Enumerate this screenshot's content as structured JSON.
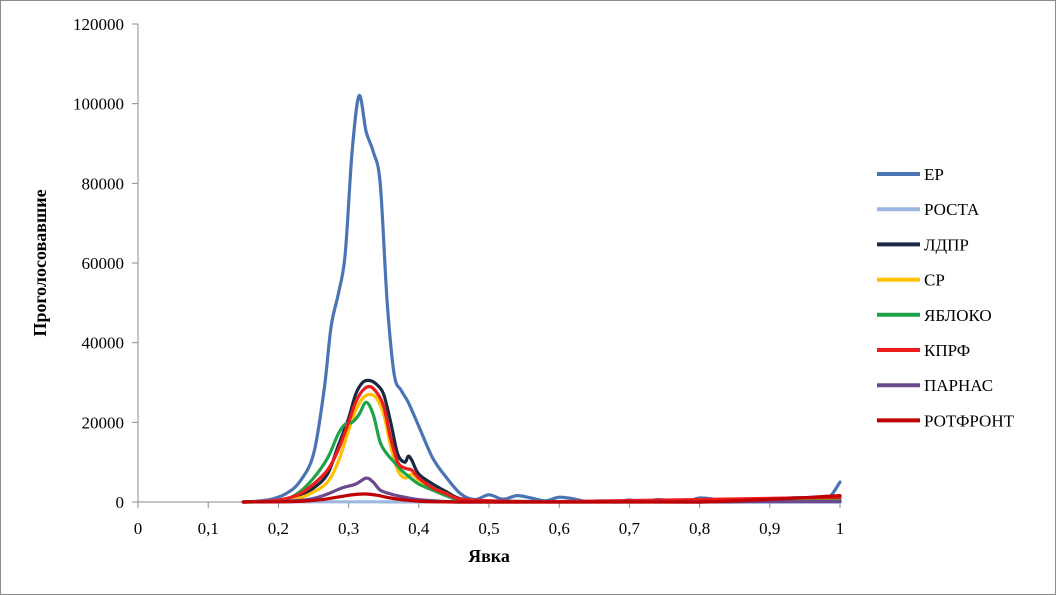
{
  "chart_data": {
    "type": "line",
    "title": "",
    "xlabel": "Явка",
    "ylabel": "Проголосовавшие",
    "xlim": [
      0,
      1
    ],
    "ylim": [
      0,
      120000
    ],
    "x_ticks": [
      "0",
      "0,1",
      "0,2",
      "0,3",
      "0,4",
      "0,5",
      "0,6",
      "0,7",
      "0,8",
      "0,9",
      "1"
    ],
    "y_ticks": [
      "0",
      "20000",
      "40000",
      "60000",
      "80000",
      "100000",
      "120000"
    ],
    "grid": false,
    "legend_position": "right",
    "series": [
      {
        "name": "ЕР",
        "color": "#4a74b4",
        "points": [
          [
            0.15,
            0
          ],
          [
            0.17,
            200
          ],
          [
            0.19,
            700
          ],
          [
            0.21,
            2000
          ],
          [
            0.23,
            5000
          ],
          [
            0.25,
            12000
          ],
          [
            0.265,
            28000
          ],
          [
            0.275,
            44000
          ],
          [
            0.285,
            52000
          ],
          [
            0.295,
            62000
          ],
          [
            0.305,
            88000
          ],
          [
            0.315,
            102000
          ],
          [
            0.325,
            93000
          ],
          [
            0.335,
            88000
          ],
          [
            0.345,
            80000
          ],
          [
            0.355,
            50000
          ],
          [
            0.365,
            32000
          ],
          [
            0.375,
            28000
          ],
          [
            0.385,
            25000
          ],
          [
            0.4,
            19000
          ],
          [
            0.42,
            11000
          ],
          [
            0.44,
            6000
          ],
          [
            0.46,
            2000
          ],
          [
            0.48,
            600
          ],
          [
            0.5,
            1800
          ],
          [
            0.52,
            700
          ],
          [
            0.54,
            1600
          ],
          [
            0.56,
            1000
          ],
          [
            0.58,
            300
          ],
          [
            0.6,
            1200
          ],
          [
            0.62,
            800
          ],
          [
            0.64,
            100
          ],
          [
            0.66,
            300
          ],
          [
            0.68,
            0
          ],
          [
            0.7,
            500
          ],
          [
            0.72,
            0
          ],
          [
            0.74,
            600
          ],
          [
            0.76,
            300
          ],
          [
            0.78,
            0
          ],
          [
            0.8,
            1000
          ],
          [
            0.82,
            700
          ],
          [
            0.84,
            0
          ],
          [
            0.86,
            200
          ],
          [
            0.88,
            0
          ],
          [
            0.9,
            700
          ],
          [
            0.92,
            900
          ],
          [
            0.94,
            1100
          ],
          [
            0.96,
            800
          ],
          [
            0.98,
            200
          ],
          [
            1.0,
            5000
          ]
        ]
      },
      {
        "name": "РОСТА",
        "color": "#9cb8e0",
        "points": [
          [
            0.15,
            0
          ],
          [
            0.3,
            40
          ],
          [
            0.5,
            0
          ],
          [
            1.0,
            0
          ]
        ]
      },
      {
        "name": "ЛДПР",
        "color": "#1b2844",
        "points": [
          [
            0.15,
            0
          ],
          [
            0.19,
            200
          ],
          [
            0.21,
            500
          ],
          [
            0.23,
            1500
          ],
          [
            0.25,
            3500
          ],
          [
            0.27,
            7000
          ],
          [
            0.285,
            14000
          ],
          [
            0.3,
            21000
          ],
          [
            0.31,
            27000
          ],
          [
            0.32,
            30000
          ],
          [
            0.33,
            30500
          ],
          [
            0.34,
            29500
          ],
          [
            0.35,
            27000
          ],
          [
            0.36,
            20000
          ],
          [
            0.37,
            12000
          ],
          [
            0.38,
            10000
          ],
          [
            0.385,
            11500
          ],
          [
            0.39,
            10500
          ],
          [
            0.4,
            7000
          ],
          [
            0.42,
            4500
          ],
          [
            0.44,
            2500
          ],
          [
            0.46,
            800
          ],
          [
            0.5,
            300
          ],
          [
            0.6,
            100
          ],
          [
            0.8,
            0
          ],
          [
            1.0,
            500
          ]
        ]
      },
      {
        "name": "СР",
        "color": "#ffc000",
        "points": [
          [
            0.15,
            0
          ],
          [
            0.19,
            150
          ],
          [
            0.21,
            400
          ],
          [
            0.23,
            1000
          ],
          [
            0.25,
            2500
          ],
          [
            0.27,
            5000
          ],
          [
            0.285,
            10000
          ],
          [
            0.3,
            18000
          ],
          [
            0.31,
            23000
          ],
          [
            0.32,
            26000
          ],
          [
            0.33,
            27000
          ],
          [
            0.34,
            26000
          ],
          [
            0.35,
            22000
          ],
          [
            0.36,
            14000
          ],
          [
            0.37,
            8000
          ],
          [
            0.38,
            6000
          ],
          [
            0.39,
            7000
          ],
          [
            0.4,
            5500
          ],
          [
            0.42,
            3500
          ],
          [
            0.44,
            2000
          ],
          [
            0.46,
            600
          ],
          [
            0.5,
            200
          ],
          [
            0.6,
            100
          ],
          [
            1.0,
            300
          ]
        ]
      },
      {
        "name": "ЯБЛОКО",
        "color": "#1ea34a",
        "points": [
          [
            0.15,
            0
          ],
          [
            0.19,
            200
          ],
          [
            0.21,
            600
          ],
          [
            0.23,
            2500
          ],
          [
            0.25,
            6000
          ],
          [
            0.27,
            11000
          ],
          [
            0.285,
            17000
          ],
          [
            0.295,
            19500
          ],
          [
            0.305,
            20000
          ],
          [
            0.315,
            22000
          ],
          [
            0.325,
            25000
          ],
          [
            0.335,
            22000
          ],
          [
            0.345,
            15000
          ],
          [
            0.355,
            12000
          ],
          [
            0.365,
            10000
          ],
          [
            0.375,
            8000
          ],
          [
            0.385,
            6500
          ],
          [
            0.4,
            4500
          ],
          [
            0.42,
            3000
          ],
          [
            0.44,
            1500
          ],
          [
            0.46,
            400
          ],
          [
            0.5,
            100
          ],
          [
            1.0,
            200
          ]
        ]
      },
      {
        "name": "КПРФ",
        "color": "#ee1c1c",
        "points": [
          [
            0.15,
            0
          ],
          [
            0.19,
            300
          ],
          [
            0.21,
            800
          ],
          [
            0.23,
            2000
          ],
          [
            0.25,
            4500
          ],
          [
            0.27,
            8000
          ],
          [
            0.285,
            13000
          ],
          [
            0.3,
            20000
          ],
          [
            0.31,
            25000
          ],
          [
            0.32,
            28000
          ],
          [
            0.33,
            29000
          ],
          [
            0.34,
            27500
          ],
          [
            0.35,
            24000
          ],
          [
            0.36,
            16000
          ],
          [
            0.37,
            10000
          ],
          [
            0.38,
            8500
          ],
          [
            0.39,
            8000
          ],
          [
            0.4,
            6000
          ],
          [
            0.42,
            3500
          ],
          [
            0.44,
            2000
          ],
          [
            0.46,
            700
          ],
          [
            0.5,
            300
          ],
          [
            0.6,
            100
          ],
          [
            1.0,
            1200
          ]
        ]
      },
      {
        "name": "ПАРНАС",
        "color": "#6a4a8c",
        "points": [
          [
            0.15,
            0
          ],
          [
            0.2,
            100
          ],
          [
            0.23,
            400
          ],
          [
            0.25,
            900
          ],
          [
            0.27,
            2000
          ],
          [
            0.29,
            3500
          ],
          [
            0.31,
            4500
          ],
          [
            0.325,
            6000
          ],
          [
            0.335,
            5000
          ],
          [
            0.345,
            3000
          ],
          [
            0.36,
            2000
          ],
          [
            0.38,
            1200
          ],
          [
            0.4,
            600
          ],
          [
            0.43,
            200
          ],
          [
            0.46,
            50
          ],
          [
            0.5,
            0
          ],
          [
            1.0,
            100
          ]
        ]
      },
      {
        "name": "РОТФРОНТ",
        "color": "#c00000",
        "points": [
          [
            0.15,
            0
          ],
          [
            0.2,
            50
          ],
          [
            0.23,
            150
          ],
          [
            0.25,
            400
          ],
          [
            0.27,
            800
          ],
          [
            0.29,
            1400
          ],
          [
            0.31,
            1900
          ],
          [
            0.325,
            2000
          ],
          [
            0.34,
            1700
          ],
          [
            0.36,
            1000
          ],
          [
            0.38,
            500
          ],
          [
            0.4,
            200
          ],
          [
            0.43,
            50
          ],
          [
            0.5,
            0
          ],
          [
            0.8,
            0
          ],
          [
            1.0,
            1600
          ]
        ]
      }
    ]
  }
}
